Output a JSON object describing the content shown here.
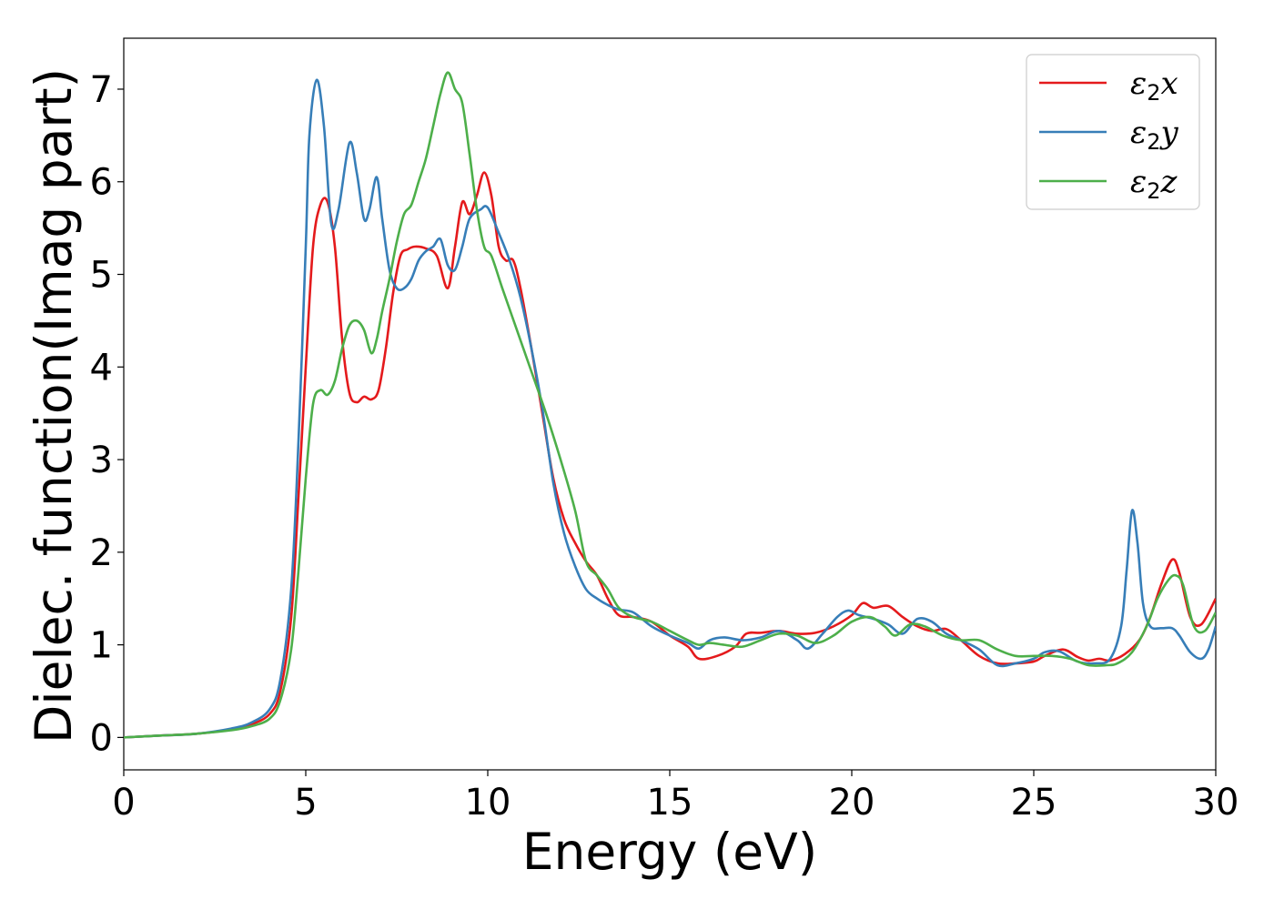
{
  "chart_data": {
    "type": "line",
    "xlabel": "Energy (eV)",
    "ylabel": "Dielec. function(Imag part)",
    "xlim": [
      0,
      30
    ],
    "ylim": [
      -0.35,
      7.55
    ],
    "xticks": [
      0,
      5,
      10,
      15,
      20,
      25,
      30
    ],
    "yticks": [
      0,
      1,
      2,
      3,
      4,
      5,
      6,
      7
    ],
    "grid": false,
    "legend_position": "top-right",
    "series": [
      {
        "name": "ε2x",
        "base": "ε",
        "sub": "2",
        "var": "x",
        "color": "#e41a1c",
        "x": [
          0,
          1,
          2,
          3,
          3.5,
          4,
          4.3,
          4.6,
          4.8,
          5.0,
          5.2,
          5.4,
          5.6,
          5.8,
          6.0,
          6.2,
          6.4,
          6.6,
          6.8,
          7.0,
          7.2,
          7.4,
          7.6,
          7.8,
          8.0,
          8.3,
          8.6,
          8.9,
          9.1,
          9.3,
          9.5,
          9.7,
          9.9,
          10.1,
          10.3,
          10.5,
          10.7,
          10.9,
          11.2,
          11.5,
          11.8,
          12.1,
          12.4,
          12.7,
          13.0,
          13.3,
          13.6,
          14.0,
          14.5,
          15.0,
          15.5,
          15.8,
          16.3,
          16.8,
          17.1,
          17.5,
          18.0,
          18.5,
          19.0,
          19.5,
          20.0,
          20.3,
          20.6,
          21.0,
          21.4,
          21.8,
          22.2,
          22.6,
          23.0,
          23.5,
          24.0,
          24.5,
          25.0,
          25.3,
          25.8,
          26.2,
          26.5,
          26.8,
          27.1,
          27.5,
          27.9,
          28.2,
          28.5,
          28.8,
          29.0,
          29.3,
          29.6,
          30.0
        ],
        "values": [
          0,
          0.02,
          0.04,
          0.09,
          0.14,
          0.25,
          0.5,
          1.3,
          2.6,
          4.0,
          5.3,
          5.75,
          5.78,
          5.3,
          4.3,
          3.72,
          3.62,
          3.68,
          3.65,
          3.75,
          4.2,
          4.8,
          5.2,
          5.27,
          5.3,
          5.28,
          5.2,
          4.85,
          5.3,
          5.78,
          5.65,
          5.85,
          6.1,
          5.85,
          5.3,
          5.15,
          5.15,
          4.85,
          4.2,
          3.5,
          2.8,
          2.35,
          2.1,
          1.9,
          1.75,
          1.5,
          1.32,
          1.3,
          1.25,
          1.1,
          0.98,
          0.85,
          0.88,
          0.98,
          1.12,
          1.13,
          1.15,
          1.12,
          1.13,
          1.2,
          1.32,
          1.45,
          1.4,
          1.42,
          1.3,
          1.2,
          1.15,
          1.17,
          1.05,
          0.88,
          0.8,
          0.8,
          0.82,
          0.88,
          0.95,
          0.87,
          0.83,
          0.85,
          0.83,
          0.9,
          1.05,
          1.3,
          1.65,
          1.92,
          1.78,
          1.3,
          1.22,
          1.5
        ]
      },
      {
        "name": "ε2y",
        "base": "ε",
        "sub": "2",
        "var": "y",
        "color": "#377eb8",
        "x": [
          0,
          1,
          2,
          3,
          3.5,
          4,
          4.3,
          4.6,
          4.8,
          5.0,
          5.1,
          5.3,
          5.5,
          5.7,
          5.9,
          6.2,
          6.4,
          6.6,
          6.75,
          6.95,
          7.1,
          7.3,
          7.5,
          7.7,
          7.9,
          8.1,
          8.3,
          8.5,
          8.7,
          8.9,
          9.1,
          9.3,
          9.5,
          9.8,
          10.0,
          10.3,
          10.6,
          10.9,
          11.2,
          11.5,
          11.8,
          12.1,
          12.4,
          12.7,
          13.0,
          13.3,
          13.6,
          14.0,
          14.5,
          15.0,
          15.5,
          15.8,
          16.1,
          16.5,
          17.0,
          17.5,
          18.0,
          18.5,
          18.8,
          19.2,
          19.6,
          19.9,
          20.2,
          20.6,
          21.0,
          21.4,
          21.8,
          22.2,
          22.6,
          23.0,
          23.5,
          24.0,
          24.5,
          25.0,
          25.3,
          25.7,
          26.2,
          26.7,
          27.1,
          27.4,
          27.55,
          27.7,
          27.85,
          28.0,
          28.2,
          28.5,
          28.8,
          29.0,
          29.3,
          29.6,
          29.8,
          30.0
        ],
        "values": [
          0,
          0.02,
          0.04,
          0.1,
          0.16,
          0.3,
          0.62,
          1.6,
          3.2,
          5.3,
          6.5,
          7.1,
          6.6,
          5.55,
          5.7,
          6.42,
          6.1,
          5.6,
          5.7,
          6.05,
          5.6,
          5.05,
          4.85,
          4.85,
          4.95,
          5.15,
          5.25,
          5.3,
          5.38,
          5.1,
          5.05,
          5.3,
          5.6,
          5.7,
          5.72,
          5.45,
          5.15,
          4.75,
          4.2,
          3.55,
          2.75,
          2.2,
          1.85,
          1.6,
          1.5,
          1.43,
          1.38,
          1.35,
          1.2,
          1.1,
          1.02,
          0.96,
          1.05,
          1.08,
          1.05,
          1.08,
          1.15,
          1.05,
          0.96,
          1.12,
          1.3,
          1.37,
          1.32,
          1.28,
          1.22,
          1.12,
          1.28,
          1.25,
          1.12,
          1.05,
          0.95,
          0.78,
          0.8,
          0.85,
          0.92,
          0.93,
          0.82,
          0.8,
          0.85,
          1.2,
          1.8,
          2.45,
          2.1,
          1.45,
          1.2,
          1.18,
          1.18,
          1.1,
          0.92,
          0.85,
          0.95,
          1.2
        ]
      },
      {
        "name": "ε2z",
        "base": "ε",
        "sub": "2",
        "var": "z",
        "color": "#4daf4a",
        "x": [
          0,
          1,
          2,
          3,
          3.5,
          4,
          4.3,
          4.6,
          4.8,
          5.0,
          5.2,
          5.4,
          5.6,
          5.8,
          6.0,
          6.2,
          6.4,
          6.6,
          6.8,
          6.95,
          7.1,
          7.3,
          7.5,
          7.7,
          7.9,
          8.1,
          8.3,
          8.5,
          8.7,
          8.9,
          9.1,
          9.3,
          9.5,
          9.7,
          9.9,
          10.1,
          10.4,
          10.8,
          11.2,
          11.6,
          12.0,
          12.4,
          12.7,
          13.0,
          13.3,
          13.6,
          14.0,
          14.5,
          15.0,
          15.5,
          15.8,
          16.1,
          16.5,
          17.0,
          17.5,
          18.0,
          18.5,
          19.0,
          19.5,
          20.0,
          20.5,
          20.9,
          21.2,
          21.6,
          22.0,
          22.5,
          23.0,
          23.5,
          24.0,
          24.5,
          25.0,
          25.5,
          26.0,
          26.5,
          27.0,
          27.3,
          27.7,
          28.1,
          28.4,
          28.7,
          28.9,
          29.1,
          29.4,
          29.7,
          30.0
        ],
        "values": [
          0,
          0.02,
          0.04,
          0.08,
          0.12,
          0.2,
          0.4,
          0.95,
          1.8,
          2.8,
          3.6,
          3.75,
          3.7,
          3.85,
          4.2,
          4.45,
          4.5,
          4.4,
          4.15,
          4.3,
          4.6,
          4.95,
          5.35,
          5.65,
          5.75,
          6.0,
          6.25,
          6.6,
          6.95,
          7.18,
          7.0,
          6.85,
          6.3,
          5.7,
          5.3,
          5.2,
          4.85,
          4.4,
          3.95,
          3.5,
          3.0,
          2.45,
          1.9,
          1.75,
          1.6,
          1.4,
          1.3,
          1.25,
          1.15,
          1.05,
          1.0,
          1.02,
          1.0,
          0.98,
          1.05,
          1.12,
          1.1,
          1.02,
          1.1,
          1.25,
          1.3,
          1.2,
          1.1,
          1.22,
          1.2,
          1.1,
          1.05,
          1.05,
          0.95,
          0.88,
          0.88,
          0.88,
          0.85,
          0.78,
          0.78,
          0.8,
          0.92,
          1.2,
          1.5,
          1.7,
          1.75,
          1.65,
          1.2,
          1.15,
          1.35
        ]
      }
    ]
  }
}
